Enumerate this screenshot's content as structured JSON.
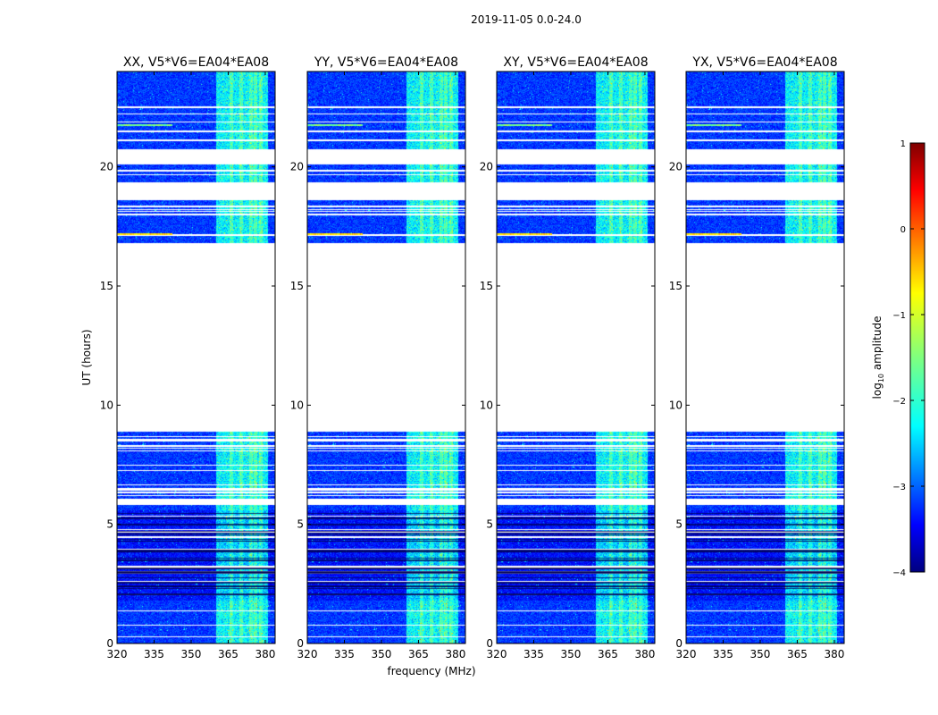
{
  "chart_data": {
    "type": "heatmap",
    "suptitle": "2019-11-05 0.0-24.0",
    "xlabel": "frequency (MHz)",
    "ylabel": "UT (hours)",
    "xlim": [
      320,
      384
    ],
    "ylim": [
      0,
      24
    ],
    "xticks": [
      320,
      335,
      350,
      365,
      380
    ],
    "yticks": [
      0,
      5,
      10,
      15,
      20
    ],
    "bright_band_mhz": [
      360,
      381
    ],
    "rfi_channels_mhz": [
      366,
      370,
      374,
      376,
      378
    ],
    "data_blocks_hours": [
      [
        0,
        5.8
      ],
      [
        5.95,
        8.9
      ],
      [
        16.8,
        18.6
      ],
      [
        19.35,
        20.1
      ],
      [
        20.75,
        24
      ]
    ],
    "panels": [
      {
        "title": "XX, V5*V6=EA04*EA08"
      },
      {
        "title": "YY, V5*V6=EA04*EA08"
      },
      {
        "title": "XY, V5*V6=EA04*EA08"
      },
      {
        "title": "YX, V5*V6=EA04*EA08"
      }
    ],
    "colorbar": {
      "label": "log10 amplitude",
      "label_main": "log",
      "label_sub": "10",
      "label_rest": " amplitude",
      "range": [
        -4,
        1
      ],
      "ticks": [
        1,
        0,
        -1,
        -2,
        -3,
        -4
      ],
      "tick_labels": [
        "1",
        "0",
        "−1",
        "−2",
        "−3",
        "−4"
      ],
      "colormap": "jet"
    }
  },
  "colors": {
    "background": "#ffffff",
    "axis": "#000000",
    "jet": [
      "#00007f",
      "#0000ff",
      "#007fff",
      "#00ffff",
      "#7fff7f",
      "#ffff00",
      "#ff7f00",
      "#ff0000",
      "#7f0000"
    ]
  }
}
